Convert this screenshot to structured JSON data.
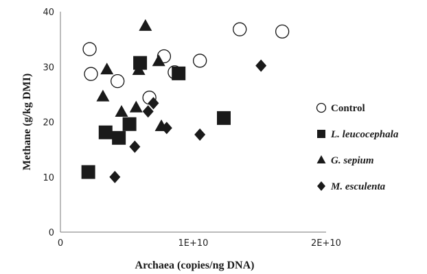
{
  "chart_data": {
    "type": "scatter",
    "xlabel": "Archaea (copies/ng DNA)",
    "ylabel": "Methane (g/kg DMI)",
    "xlim": [
      0,
      20000000000
    ],
    "ylim": [
      0,
      40
    ],
    "x_ticks": [
      {
        "value": 0,
        "label": "0"
      },
      {
        "value": 10000000000,
        "label": "1E+10"
      },
      {
        "value": 20000000000,
        "label": "2E+10"
      }
    ],
    "y_ticks": [
      {
        "value": 0,
        "label": "0"
      },
      {
        "value": 10,
        "label": "10"
      },
      {
        "value": 20,
        "label": "20"
      },
      {
        "value": 30,
        "label": "30"
      },
      {
        "value": 40,
        "label": "40"
      }
    ],
    "grid": false,
    "legend_position": "right",
    "series": [
      {
        "name": "Control",
        "marker": "circle-open",
        "italic": false,
        "points": [
          {
            "x": 2200000000,
            "y": 33.2
          },
          {
            "x": 2300000000,
            "y": 28.7
          },
          {
            "x": 4300000000,
            "y": 27.4
          },
          {
            "x": 6700000000,
            "y": 24.4
          },
          {
            "x": 7800000000,
            "y": 31.9
          },
          {
            "x": 8600000000,
            "y": 29.0
          },
          {
            "x": 10500000000,
            "y": 31.1
          },
          {
            "x": 13500000000,
            "y": 36.8
          },
          {
            "x": 16700000000,
            "y": 36.4
          }
        ]
      },
      {
        "name": "L. leucocephala",
        "marker": "square",
        "italic": true,
        "points": [
          {
            "x": 2100000000,
            "y": 10.9
          },
          {
            "x": 3400000000,
            "y": 18.1
          },
          {
            "x": 4400000000,
            "y": 17.1
          },
          {
            "x": 5200000000,
            "y": 19.6
          },
          {
            "x": 6000000000,
            "y": 30.7
          },
          {
            "x": 8900000000,
            "y": 28.8
          },
          {
            "x": 12300000000,
            "y": 20.7
          }
        ]
      },
      {
        "name": "G. sepium",
        "marker": "triangle",
        "italic": true,
        "points": [
          {
            "x": 3200000000,
            "y": 24.6
          },
          {
            "x": 3500000000,
            "y": 29.5
          },
          {
            "x": 4600000000,
            "y": 21.8
          },
          {
            "x": 5700000000,
            "y": 22.6
          },
          {
            "x": 5900000000,
            "y": 29.4
          },
          {
            "x": 6400000000,
            "y": 37.4
          },
          {
            "x": 7400000000,
            "y": 31.0
          },
          {
            "x": 7600000000,
            "y": 19.2
          }
        ]
      },
      {
        "name": "M. esculenta",
        "marker": "diamond",
        "italic": true,
        "points": [
          {
            "x": 4100000000,
            "y": 10.0
          },
          {
            "x": 5600000000,
            "y": 15.5
          },
          {
            "x": 6600000000,
            "y": 21.9
          },
          {
            "x": 7000000000,
            "y": 23.4
          },
          {
            "x": 8000000000,
            "y": 18.9
          },
          {
            "x": 10500000000,
            "y": 17.7
          },
          {
            "x": 15100000000,
            "y": 30.2
          }
        ]
      }
    ]
  }
}
